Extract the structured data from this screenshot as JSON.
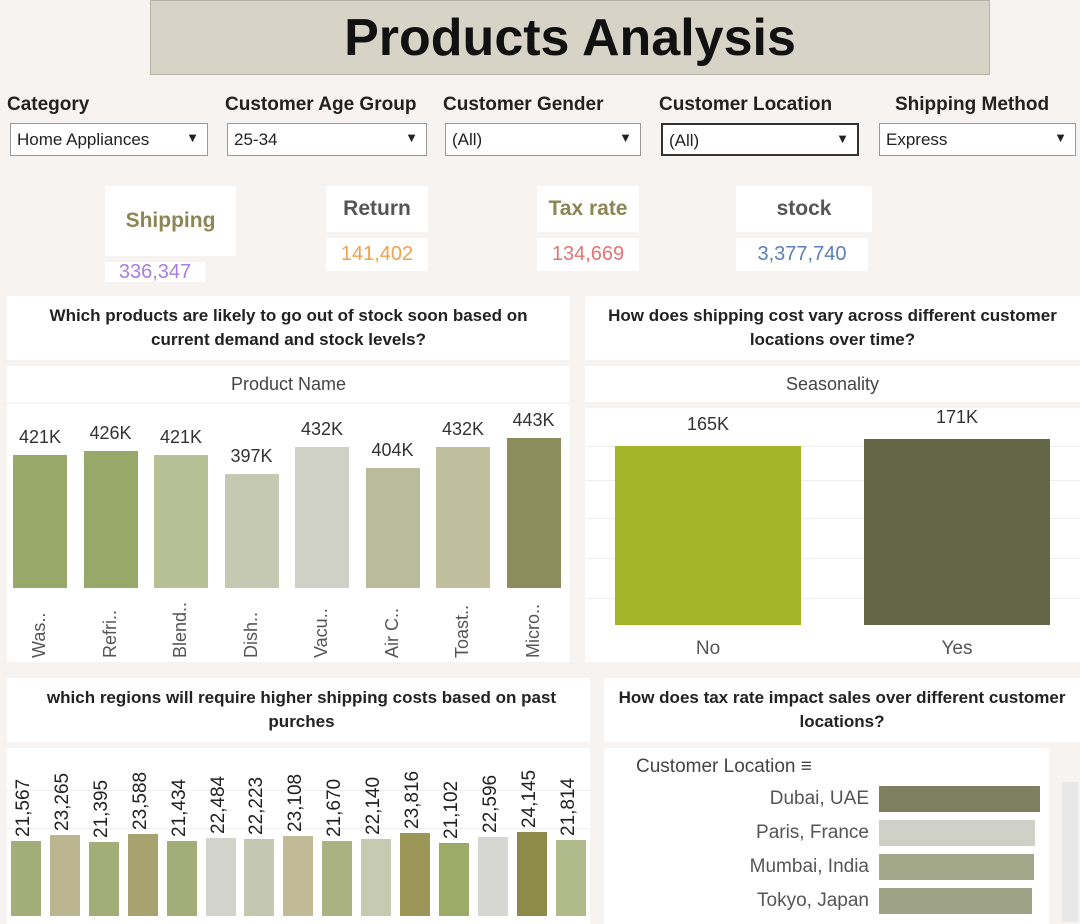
{
  "title": "Products Analysis",
  "filters": [
    {
      "label": "Category",
      "value": "Home Appliances"
    },
    {
      "label": "Customer Age Group",
      "value": "25-34"
    },
    {
      "label": "Customer Gender",
      "value": "(All)"
    },
    {
      "label": "Customer Location",
      "value": "(All)"
    },
    {
      "label": "Shipping Method",
      "value": "Express"
    }
  ],
  "kpis": [
    {
      "label": "Shipping",
      "value": "336,347",
      "color": "#a77ee0"
    },
    {
      "label": "Return",
      "value": "141,402",
      "color": "#f0a050"
    },
    {
      "label": "Tax rate",
      "value": "134,669",
      "color": "#e57373"
    },
    {
      "label": "stock",
      "value": "3,377,740",
      "color": "#5b7fb8"
    }
  ],
  "stock_chart": {
    "question": "Which products are likely to go out of stock soon based on current demand and stock levels?",
    "header": "Product Name",
    "chart_data": {
      "type": "bar",
      "categories": [
        "Was..",
        "Refri..",
        "Blend..",
        "Dish..",
        "Vacu..",
        "Air C..",
        "Toast..",
        "Micro.."
      ],
      "values": [
        421,
        426,
        421,
        397,
        432,
        404,
        432,
        443
      ],
      "labels": [
        "421K",
        "426K",
        "421K",
        "397K",
        "432K",
        "404K",
        "432K",
        "443K"
      ],
      "colors": [
        "#98a868",
        "#98a868",
        "#b7c095",
        "#c5c9b2",
        "#d0d1c6",
        "#b9bb9d",
        "#c0be9c",
        "#8d8c5c"
      ]
    }
  },
  "season_chart": {
    "question": "How does shipping cost vary across different customer locations over time?",
    "header": "Seasonality",
    "chart_data": {
      "type": "bar",
      "categories": [
        "No",
        "Yes"
      ],
      "values": [
        165,
        171
      ],
      "labels": [
        "165K",
        "171K"
      ],
      "colors": [
        "#a4b42a",
        "#636647"
      ]
    }
  },
  "region_chart": {
    "question": "which regions will require higher shipping costs based on past purches",
    "chart_data": {
      "type": "bar",
      "values": [
        21567,
        23265,
        21395,
        23588,
        21434,
        22484,
        22223,
        23108,
        21670,
        22140,
        23816,
        21102,
        22596,
        24145,
        21814
      ],
      "labels": [
        "21,567",
        "23,265",
        "21,395",
        "23,588",
        "21,434",
        "22,484",
        "22,223",
        "23,108",
        "21,670",
        "22,140",
        "23,816",
        "21,102",
        "22,596",
        "24,145",
        "21,814"
      ],
      "colors": [
        "#a2ad78",
        "#bcb690",
        "#a2ad78",
        "#a8a270",
        "#a2ad78",
        "#d2d3ca",
        "#c4c8b2",
        "#c0ba96",
        "#aab282",
        "#c6cab0",
        "#9c9658",
        "#9cac68",
        "#d6d6d2",
        "#8e8a48",
        "#b0ba8a"
      ]
    }
  },
  "tax_chart": {
    "question": "How does tax rate impact sales over different customer locations?",
    "header": "Customer Location",
    "chart_data": {
      "type": "bar",
      "categories": [
        "Dubai, UAE",
        "Paris, France",
        "Mumbai, India",
        "Tokyo, Japan"
      ],
      "colors": [
        "#7d8060",
        "#cfd0c8",
        "#a3a78a",
        "#9ea287"
      ],
      "relative": [
        1,
        0.97,
        0.96,
        0.95
      ]
    }
  }
}
